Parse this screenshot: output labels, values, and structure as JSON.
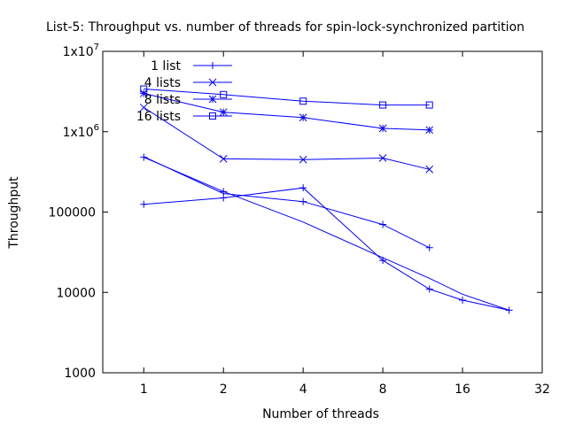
{
  "chart_data": {
    "type": "line",
    "title": "List-5: Throughput vs. number of threads for spin-lock-synchronized partition",
    "xlabel": "Number of threads",
    "ylabel": "Throughput",
    "x_scale": "log2",
    "y_scale": "log10",
    "xlim": [
      0.7,
      32
    ],
    "ylim": [
      1000,
      10000000
    ],
    "x_ticks": [
      1,
      2,
      4,
      8,
      16,
      32
    ],
    "x_tick_labels": [
      "1",
      "2",
      "4",
      "8",
      "16",
      "32"
    ],
    "y_ticks": [
      1000,
      10000,
      100000,
      1000000,
      10000000
    ],
    "y_tick_labels": [
      {
        "base": "1000",
        "exp": ""
      },
      {
        "base": "10000",
        "exp": ""
      },
      {
        "base": "100000",
        "exp": ""
      },
      {
        "base": "1x10",
        "exp": "6"
      },
      {
        "base": "1x10",
        "exp": "7"
      }
    ],
    "grid": false,
    "legend_position": "top-left",
    "line_color": "#0000ff",
    "series": [
      {
        "name": "1 list",
        "marker": "plus",
        "lines": [
          {
            "x": [
              1,
              2,
              4,
              8,
              12,
              16,
              24
            ],
            "y": [
              480000,
              180000,
              75000,
              27000,
              15000,
              9500,
              6000
            ]
          },
          {
            "x": [
              1,
              2,
              4,
              8,
              12,
              16,
              24
            ],
            "y": [
              125000,
              150000,
              200000,
              25000,
              11000,
              8000,
              6000
            ]
          },
          {
            "x": [
              1,
              2,
              4,
              8,
              12
            ],
            "y": [
              490000,
              170000,
              135000,
              70000,
              36000
            ]
          }
        ],
        "points": [
          {
            "x": 1,
            "y": 480000
          },
          {
            "x": 1,
            "y": 125000
          },
          {
            "x": 2,
            "y": 180000
          },
          {
            "x": 2,
            "y": 150000
          },
          {
            "x": 4,
            "y": 200000
          },
          {
            "x": 4,
            "y": 135000
          },
          {
            "x": 8,
            "y": 70000
          },
          {
            "x": 8,
            "y": 25000
          },
          {
            "x": 12,
            "y": 36000
          },
          {
            "x": 12,
            "y": 11000
          },
          {
            "x": 16,
            "y": 8000
          },
          {
            "x": 24,
            "y": 6000
          }
        ]
      },
      {
        "name": "4 lists",
        "marker": "cross",
        "lines": [
          {
            "x": [
              1,
              2,
              4,
              8,
              12
            ],
            "y": [
              2000000,
              460000,
              450000,
              470000,
              340000
            ]
          }
        ],
        "points": [
          {
            "x": 1,
            "y": 2000000
          },
          {
            "x": 2,
            "y": 460000
          },
          {
            "x": 4,
            "y": 450000
          },
          {
            "x": 8,
            "y": 470000
          },
          {
            "x": 12,
            "y": 340000
          }
        ]
      },
      {
        "name": "8 lists",
        "marker": "star",
        "lines": [
          {
            "x": [
              1,
              2,
              4,
              8,
              12
            ],
            "y": [
              3000000,
              1750000,
              1500000,
              1100000,
              1050000
            ]
          }
        ],
        "points": [
          {
            "x": 1,
            "y": 3000000
          },
          {
            "x": 2,
            "y": 1750000
          },
          {
            "x": 4,
            "y": 1500000
          },
          {
            "x": 8,
            "y": 1100000
          },
          {
            "x": 12,
            "y": 1050000
          }
        ]
      },
      {
        "name": "16 lists",
        "marker": "square",
        "lines": [
          {
            "x": [
              1,
              2,
              4,
              8,
              12
            ],
            "y": [
              3400000,
              2900000,
              2400000,
              2150000,
              2150000
            ]
          }
        ],
        "points": [
          {
            "x": 1,
            "y": 3400000
          },
          {
            "x": 2,
            "y": 2900000
          },
          {
            "x": 4,
            "y": 2400000
          },
          {
            "x": 8,
            "y": 2150000
          },
          {
            "x": 12,
            "y": 2150000
          }
        ]
      }
    ]
  }
}
